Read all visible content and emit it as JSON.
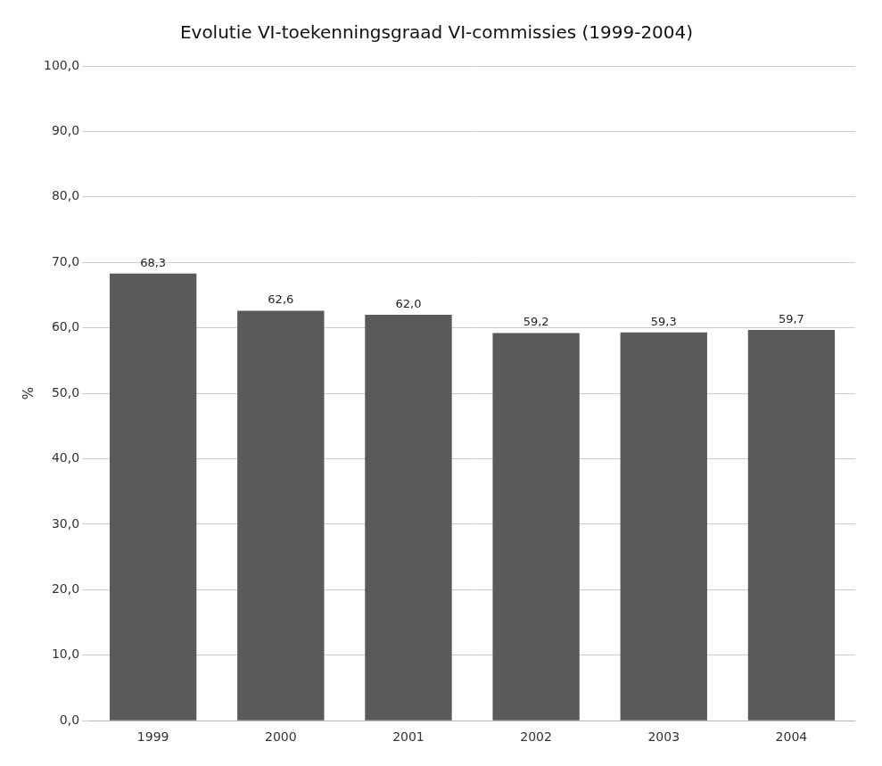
{
  "chart_data": {
    "type": "bar",
    "title": "Evolutie VI-toekenningsgraad VI-commissies (1999-2004)",
    "ylabel": "%",
    "categories": [
      "1999",
      "2000",
      "2001",
      "2002",
      "2003",
      "2004"
    ],
    "values": [
      68.3,
      62.6,
      62.0,
      59.2,
      59.3,
      59.7
    ],
    "value_labels": [
      "68,3",
      "62,6",
      "62,0",
      "59,2",
      "59,3",
      "59,7"
    ],
    "data_labels": true,
    "color": "#5a5a5a",
    "ylim": [
      0,
      100
    ],
    "yticks": [
      {
        "value": 0,
        "label": "0,0"
      },
      {
        "value": 10,
        "label": "10,0"
      },
      {
        "value": 20,
        "label": "20,0"
      },
      {
        "value": 30,
        "label": "30,0"
      },
      {
        "value": 40,
        "label": "40,0"
      },
      {
        "value": 50,
        "label": "50,0"
      },
      {
        "value": 60,
        "label": "60,0"
      },
      {
        "value": 70,
        "label": "70,0"
      },
      {
        "value": 80,
        "label": "80,0"
      },
      {
        "value": 90,
        "label": "90,0"
      },
      {
        "value": 100,
        "label": "100,0"
      }
    ],
    "grid": true
  }
}
